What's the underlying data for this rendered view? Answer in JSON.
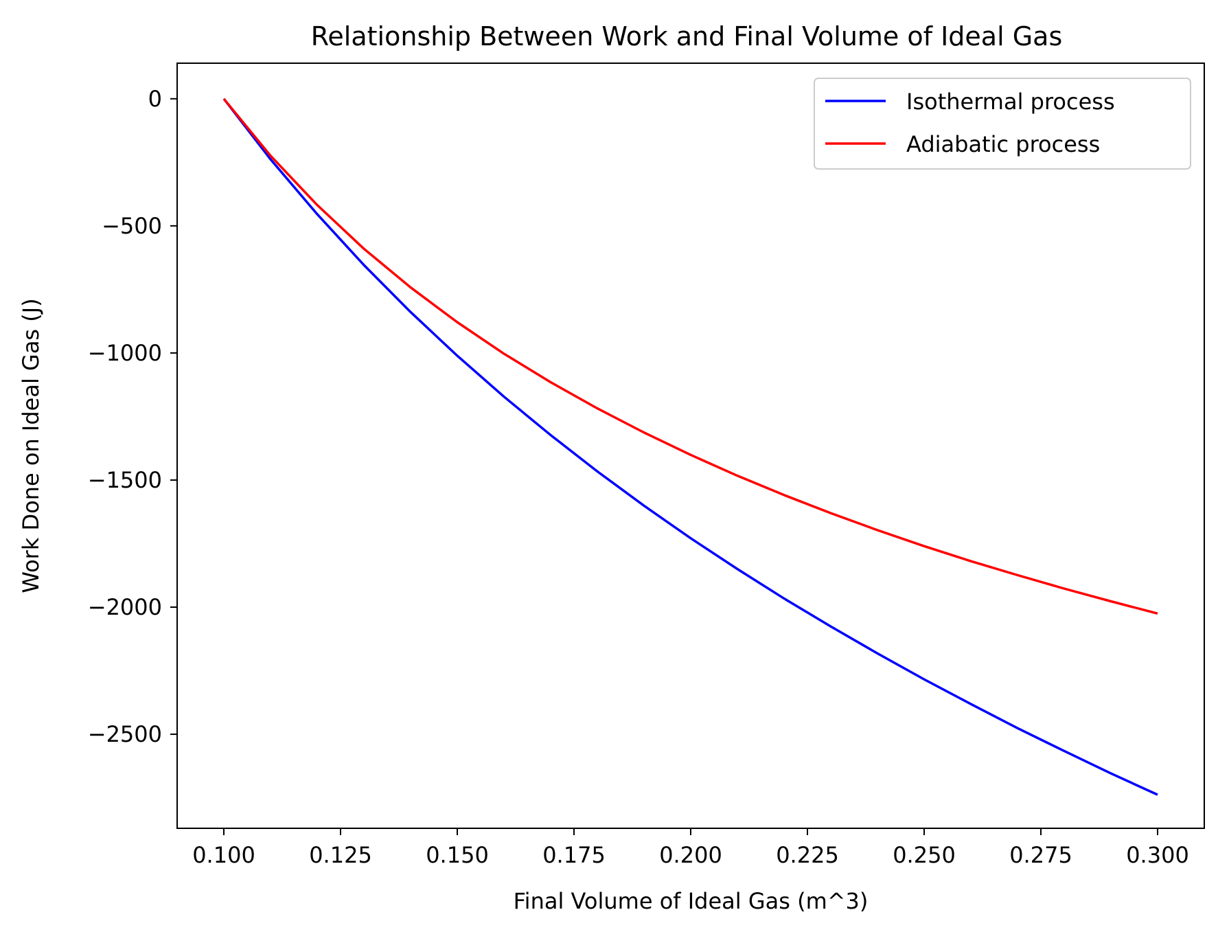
{
  "chart_data": {
    "type": "line",
    "title": "Relationship Between Work and Final Volume of Ideal Gas",
    "xlabel": "Final Volume of Ideal Gas (m^3)",
    "ylabel": "Work Done on Ideal Gas (J)",
    "xlim": [
      0.09,
      0.31
    ],
    "ylim": [
      -2870,
      140
    ],
    "xticks": [
      0.1,
      0.125,
      0.15,
      0.175,
      0.2,
      0.225,
      0.25,
      0.275,
      0.3
    ],
    "xtick_labels": [
      "0.100",
      "0.125",
      "0.150",
      "0.175",
      "0.200",
      "0.225",
      "0.250",
      "0.275",
      "0.300"
    ],
    "yticks": [
      0,
      -500,
      -1000,
      -1500,
      -2000,
      -2500
    ],
    "ytick_labels": [
      "0",
      "−500",
      "−1000",
      "−1500",
      "−2000",
      "−2500"
    ],
    "grid": false,
    "legend_position": "top-right",
    "x": [
      0.1,
      0.11,
      0.12,
      0.13,
      0.14,
      0.15,
      0.16,
      0.17,
      0.18,
      0.19,
      0.2,
      0.21,
      0.22,
      0.23,
      0.24,
      0.25,
      0.26,
      0.27,
      0.28,
      0.29,
      0.3
    ],
    "series": [
      {
        "name": "Isothermal process",
        "color": "#0000ff",
        "values": [
          0,
          -238,
          -454,
          -654,
          -839,
          -1011,
          -1172,
          -1323,
          -1466,
          -1601,
          -1729,
          -1850,
          -1966,
          -2076,
          -2182,
          -2284,
          -2381,
          -2476,
          -2566,
          -2654,
          -2738
        ]
      },
      {
        "name": "Adiabatic process",
        "color": "#ff0000",
        "values": [
          0,
          -224,
          -418,
          -590,
          -742,
          -879,
          -1003,
          -1115,
          -1218,
          -1313,
          -1401,
          -1483,
          -1559,
          -1630,
          -1697,
          -1760,
          -1819,
          -1874,
          -1927,
          -1977,
          -2025
        ]
      }
    ]
  }
}
